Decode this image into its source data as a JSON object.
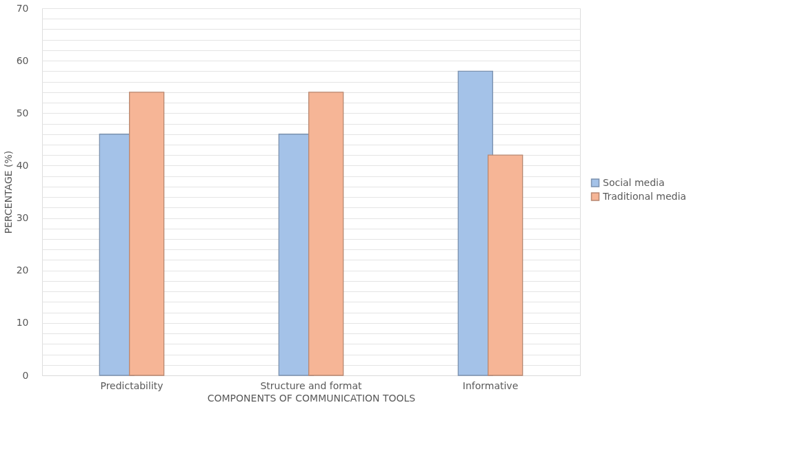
{
  "chart_data": {
    "type": "bar",
    "xlabel": "COMPONENTS OF COMMUNICATION TOOLS",
    "ylabel": "PERCENTAGE (%)",
    "categories": [
      "Predictability",
      "Structure and format",
      "Informative"
    ],
    "series": [
      {
        "name": "Social media",
        "color": "#a4c2e8",
        "values": [
          46,
          46,
          58
        ]
      },
      {
        "name": "Traditional media",
        "color": "#f6b596",
        "values": [
          54,
          54,
          42
        ]
      }
    ],
    "ylim": [
      0,
      70
    ],
    "yticks": [
      0,
      {
        "value": 2,
        "label": null
      },
      {
        "value": 4,
        "label": null
      },
      {
        "value": 6,
        "label": null
      },
      {
        "value": 8,
        "label": null
      },
      10,
      {
        "value": 12,
        "label": null
      },
      {
        "value": 14,
        "label": null
      },
      {
        "value": 16,
        "label": null
      },
      {
        "value": 18,
        "label": null
      },
      20,
      {
        "value": 22,
        "label": null
      },
      {
        "value": 24,
        "label": null
      },
      {
        "value": 26,
        "label": null
      },
      {
        "value": 28,
        "label": null
      },
      30,
      {
        "value": 32,
        "label": null
      },
      {
        "value": 34,
        "label": null
      },
      {
        "value": 36,
        "label": null
      },
      {
        "value": 38,
        "label": null
      },
      40,
      {
        "value": 42,
        "label": null
      },
      {
        "value": 44,
        "label": null
      },
      {
        "value": 46,
        "label": null
      },
      {
        "value": 48,
        "label": null
      },
      50,
      {
        "value": 52,
        "label": null
      },
      {
        "value": 54,
        "label": null
      },
      {
        "value": 56,
        "label": null
      },
      {
        "value": 58,
        "label": null
      },
      60,
      {
        "value": 62,
        "label": null
      },
      {
        "value": 64,
        "label": null
      },
      {
        "value": 66,
        "label": null
      },
      {
        "value": 68,
        "label": null
      },
      70
    ],
    "grid": "y",
    "legend": "right"
  }
}
